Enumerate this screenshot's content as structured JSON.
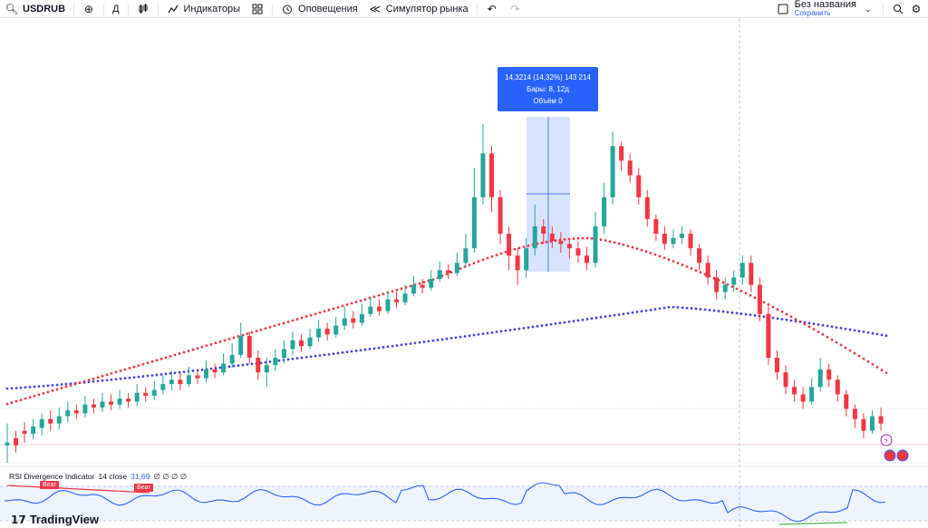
{
  "toolbar": {
    "symbol": "USDRUB",
    "interval": "Д",
    "indicators": "Индикаторы",
    "alerts": "Оповещения",
    "replay": "Симулятор рынка",
    "save_title": "Без названия",
    "save_sub": "Сохранить"
  },
  "measure": {
    "line1": "14,3214 (14,32%) 143 214",
    "line2": "Бары: 8, 12д",
    "line3": "Объём 0"
  },
  "rsi": {
    "name": "RSI Divergence Indicator",
    "params": "14 close",
    "value": "31,69",
    "extra": "∅ ∅ ∅ ∅",
    "bear1": "Bear",
    "bear2": "Bear"
  },
  "logo": "TradingView",
  "colors": {
    "up": "#26a69a",
    "down": "#f23645",
    "ma_fast": "#f23645",
    "ma_slow": "#4a44e8",
    "rsi": "#2962ff",
    "measure": "#2962ff"
  },
  "chart_data": {
    "type": "candlestick",
    "candles": [
      [
        410,
        412,
        425,
        398
      ],
      [
        415,
        410,
        420,
        405
      ],
      [
        420,
        418,
        426,
        412
      ],
      [
        418,
        423,
        428,
        414
      ],
      [
        422,
        428,
        432,
        417
      ],
      [
        428,
        425,
        434,
        420
      ],
      [
        425,
        430,
        436,
        421
      ],
      [
        430,
        434,
        440,
        426
      ],
      [
        434,
        432,
        438,
        428
      ],
      [
        432,
        438,
        444,
        429
      ],
      [
        438,
        436,
        442,
        432
      ],
      [
        436,
        440,
        446,
        433
      ],
      [
        440,
        438,
        445,
        434
      ],
      [
        438,
        442,
        448,
        435
      ],
      [
        442,
        440,
        446,
        436
      ],
      [
        440,
        446,
        452,
        437
      ],
      [
        446,
        444,
        450,
        440
      ],
      [
        444,
        448,
        454,
        441
      ],
      [
        448,
        452,
        458,
        445
      ],
      [
        452,
        455,
        461,
        448
      ],
      [
        455,
        452,
        460,
        448
      ],
      [
        452,
        458,
        464,
        450
      ],
      [
        458,
        456,
        462,
        452
      ],
      [
        456,
        462,
        468,
        453
      ],
      [
        462,
        460,
        466,
        456
      ],
      [
        460,
        466,
        473,
        458
      ],
      [
        466,
        472,
        480,
        463
      ],
      [
        472,
        485,
        494,
        470
      ],
      [
        485,
        470,
        488,
        466
      ],
      [
        470,
        460,
        475,
        455
      ],
      [
        460,
        465,
        470,
        450
      ],
      [
        465,
        470,
        476,
        461
      ],
      [
        470,
        476,
        482,
        466
      ],
      [
        476,
        482,
        488,
        472
      ],
      [
        482,
        478,
        486,
        474
      ],
      [
        478,
        484,
        490,
        476
      ],
      [
        484,
        490,
        496,
        481
      ],
      [
        490,
        486,
        494,
        482
      ],
      [
        486,
        492,
        498,
        484
      ],
      [
        492,
        497,
        505,
        489
      ],
      [
        497,
        494,
        502,
        490
      ],
      [
        494,
        500,
        507,
        492
      ],
      [
        500,
        505,
        512,
        498
      ],
      [
        505,
        502,
        510,
        499
      ],
      [
        502,
        510,
        516,
        500
      ],
      [
        510,
        508,
        515,
        504
      ],
      [
        508,
        514,
        520,
        506
      ],
      [
        514,
        520,
        526,
        512
      ],
      [
        520,
        518,
        524,
        514
      ],
      [
        518,
        524,
        530,
        516
      ],
      [
        524,
        530,
        536,
        522
      ],
      [
        530,
        528,
        534,
        524
      ],
      [
        528,
        535,
        542,
        526
      ],
      [
        535,
        545,
        555,
        532
      ],
      [
        545,
        580,
        600,
        542
      ],
      [
        580,
        610,
        630,
        575
      ],
      [
        610,
        580,
        615,
        570
      ],
      [
        580,
        555,
        585,
        548
      ],
      [
        555,
        540,
        560,
        530
      ],
      [
        540,
        530,
        545,
        520
      ],
      [
        530,
        545,
        552,
        525
      ],
      [
        545,
        560,
        575,
        540
      ],
      [
        560,
        555,
        565,
        548
      ],
      [
        555,
        550,
        560,
        545
      ],
      [
        550,
        548,
        556,
        542
      ],
      [
        548,
        545,
        552,
        538
      ],
      [
        545,
        540,
        550,
        535
      ],
      [
        540,
        535,
        546,
        530
      ],
      [
        535,
        560,
        570,
        532
      ],
      [
        560,
        580,
        590,
        555
      ],
      [
        580,
        615,
        625,
        575
      ],
      [
        615,
        605,
        618,
        598
      ],
      [
        605,
        595,
        610,
        590
      ],
      [
        595,
        580,
        600,
        575
      ],
      [
        580,
        565,
        585,
        560
      ],
      [
        565,
        555,
        568,
        550
      ],
      [
        555,
        548,
        560,
        544
      ],
      [
        548,
        552,
        558,
        545
      ],
      [
        552,
        555,
        560,
        548
      ],
      [
        555,
        545,
        558,
        540
      ],
      [
        545,
        535,
        548,
        530
      ],
      [
        535,
        525,
        540,
        520
      ],
      [
        525,
        515,
        530,
        510
      ],
      [
        515,
        520,
        525,
        510
      ],
      [
        520,
        525,
        530,
        515
      ],
      [
        525,
        535,
        540,
        520
      ],
      [
        535,
        520,
        540,
        515
      ],
      [
        520,
        500,
        525,
        495
      ],
      [
        500,
        470,
        505,
        465
      ],
      [
        470,
        460,
        475,
        455
      ],
      [
        460,
        450,
        465,
        445
      ],
      [
        450,
        445,
        455,
        440
      ],
      [
        445,
        440,
        450,
        435
      ],
      [
        440,
        450,
        456,
        438
      ],
      [
        450,
        462,
        470,
        447
      ],
      [
        462,
        455,
        466,
        450
      ],
      [
        455,
        445,
        458,
        440
      ],
      [
        445,
        435,
        448,
        430
      ],
      [
        435,
        428,
        438,
        422
      ],
      [
        428,
        420,
        432,
        415
      ],
      [
        420,
        430,
        434,
        418
      ],
      [
        430,
        425,
        436,
        420
      ]
    ]
  }
}
